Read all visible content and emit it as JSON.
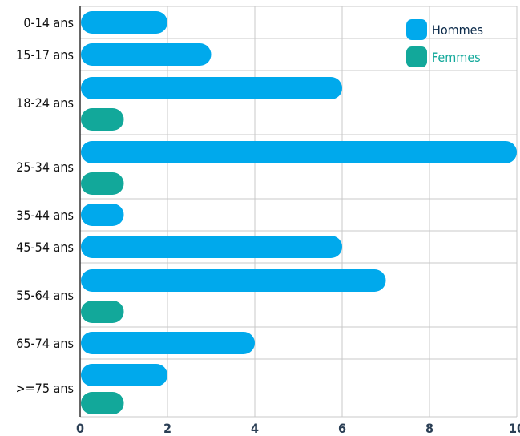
{
  "chart_data": {
    "type": "bar",
    "orientation": "horizontal",
    "categories": [
      "0-14 ans",
      "15-17 ans",
      "18-24 ans",
      "25-34 ans",
      "35-44 ans",
      "45-54 ans",
      "55-64 ans",
      "65-74 ans",
      ">=75 ans"
    ],
    "series": [
      {
        "name": "Hommes",
        "color": "#00a9ec",
        "values": [
          2,
          3,
          6,
          10,
          1,
          6,
          7,
          4,
          2
        ]
      },
      {
        "name": "Femmes",
        "color": "#12a89a",
        "values": [
          0,
          0,
          1,
          1,
          0,
          0,
          1,
          0,
          1
        ]
      }
    ],
    "xticks": [
      "0",
      "2",
      "4",
      "6",
      "8",
      "10"
    ],
    "xlim": [
      0,
      10
    ],
    "grid": true,
    "legend_position": "top-right"
  },
  "colors": {
    "grid": "#c8c8c8",
    "axis": "#333333",
    "label_male": "#0b2a4a",
    "label_female": "#12a89a"
  }
}
